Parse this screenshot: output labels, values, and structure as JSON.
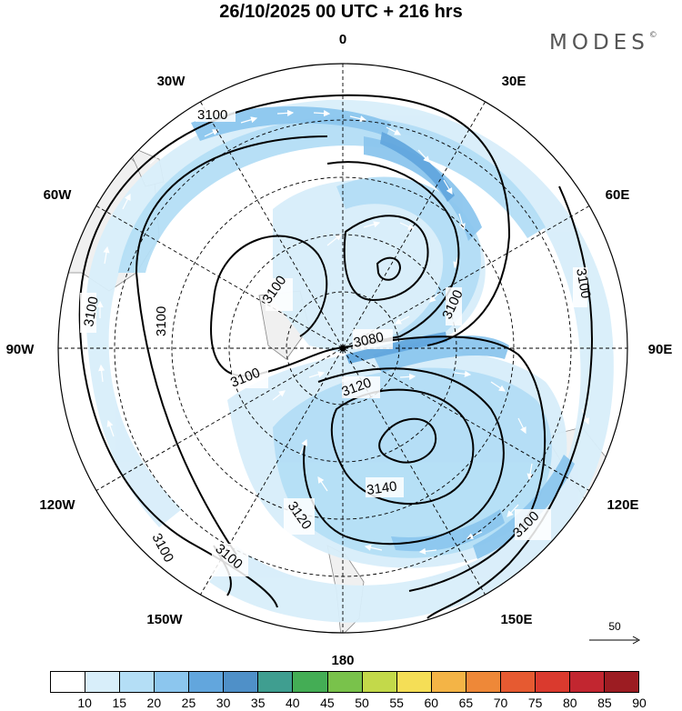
{
  "title": "26/10/2025  00 UTC  + 216 hrs",
  "brand": "MODES",
  "brand_mark": "©",
  "longitude_labels": {
    "top": "0",
    "top_right": "30E",
    "right_upper": "60E",
    "right": "90E",
    "right_lower": "120E",
    "bottom_right": "150E",
    "bottom": "180",
    "bottom_left": "150W",
    "left_lower": "120W",
    "left": "90W",
    "left_upper": "60W",
    "top_left": "30W"
  },
  "contour_labels": [
    "3100",
    "3100",
    "3100",
    "3100",
    "3100",
    "3100",
    "3100",
    "3100",
    "3100",
    "3100",
    "3080",
    "3120",
    "3140",
    "3120"
  ],
  "reference_vector": "50",
  "colorbar": {
    "ticks": [
      "10",
      "15",
      "20",
      "25",
      "30",
      "35",
      "40",
      "45",
      "50",
      "55",
      "60",
      "65",
      "70",
      "75",
      "80",
      "85",
      "90"
    ],
    "colors": [
      "#ffffff",
      "#d8eefa",
      "#b4def6",
      "#8cc6ee",
      "#62a6dd",
      "#4f90c8",
      "#3f9e90",
      "#44ad55",
      "#79c24b",
      "#c3d94a",
      "#f5de56",
      "#f4b446",
      "#ee8838",
      "#e65a31",
      "#da3a2e",
      "#c22630",
      "#9c1c22"
    ]
  }
}
